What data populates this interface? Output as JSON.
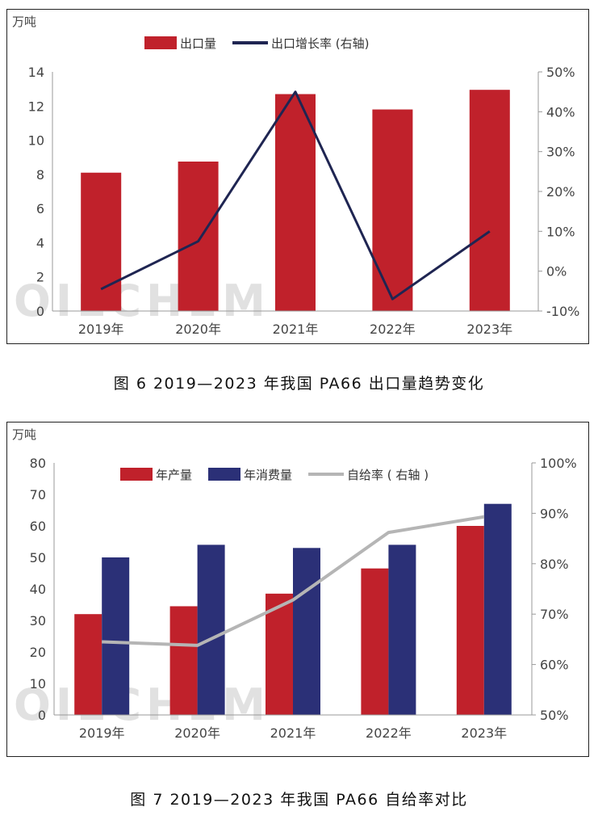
{
  "watermark": "OILCHEM",
  "captions": {
    "fig6": "图 6 2019—2023 年我国 PA66 出口量趋势变化",
    "fig7": "图 7 2019—2023 年我国 PA66 自给率对比"
  },
  "chart_data": [
    {
      "type": "bar",
      "unit_label": "万吨",
      "categories": [
        "2019年",
        "2020年",
        "2021年",
        "2022年",
        "2023年"
      ],
      "series": [
        {
          "name": "出口量",
          "type": "bar",
          "axis": "left",
          "color": "#c0212b",
          "values": [
            8.1,
            8.75,
            12.7,
            11.8,
            12.95
          ]
        },
        {
          "name": "出口增长率 (右轴)",
          "type": "line",
          "axis": "right",
          "color": "#1f2552",
          "values": [
            -4.5,
            7.5,
            45,
            -7,
            10
          ]
        }
      ],
      "left_axis": {
        "ylim": [
          0,
          14
        ],
        "ticks": [
          "0",
          "2",
          "4",
          "6",
          "8",
          "10",
          "12",
          "14"
        ]
      },
      "right_axis": {
        "ylim": [
          -10,
          50
        ],
        "ticks": [
          "-10%",
          "0%",
          "10%",
          "20%",
          "30%",
          "40%",
          "50%"
        ]
      },
      "legend_position": "top"
    },
    {
      "type": "bar",
      "unit_label": "万吨",
      "categories": [
        "2019年",
        "2020年",
        "2021年",
        "2022年",
        "2023年"
      ],
      "series": [
        {
          "name": "年产量",
          "type": "bar",
          "axis": "left",
          "color": "#c0212b",
          "values": [
            32,
            34.5,
            38.5,
            46.5,
            60
          ]
        },
        {
          "name": "年消费量",
          "type": "bar",
          "axis": "left",
          "color": "#2b3077",
          "values": [
            50,
            54,
            53,
            54,
            67
          ]
        },
        {
          "name": "自给率 ( 右轴 )",
          "type": "line",
          "axis": "right",
          "color": "#b5b5b5",
          "values": [
            64.5,
            63.8,
            72.8,
            86.2,
            89.3
          ]
        }
      ],
      "left_axis": {
        "ylim": [
          0,
          80
        ],
        "ticks": [
          "0",
          "10",
          "20",
          "30",
          "40",
          "50",
          "60",
          "70",
          "80"
        ]
      },
      "right_axis": {
        "ylim": [
          50,
          100
        ],
        "ticks": [
          "50%",
          "60%",
          "70%",
          "80%",
          "90%",
          "100%"
        ]
      },
      "legend_position": "top"
    }
  ]
}
